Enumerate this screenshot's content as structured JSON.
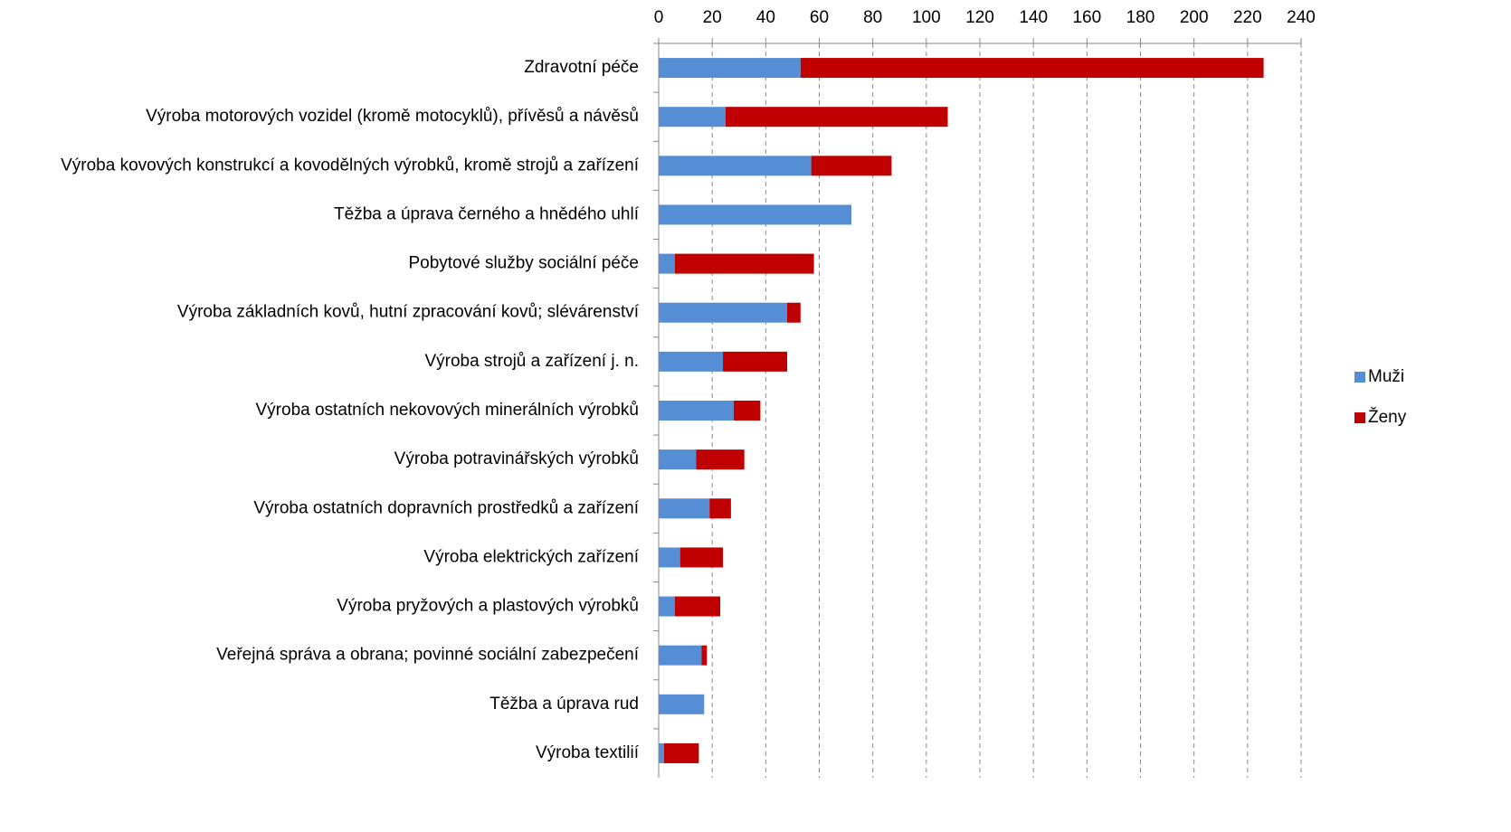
{
  "chart_data": {
    "type": "bar",
    "orientation": "horizontal",
    "stacked": true,
    "categories": [
      "Zdravotní péče",
      "Výroba motorových vozidel (kromě motocyklů), přívěsů a návěsů",
      "Výroba kovových konstrukcí a kovodělných výrobků, kromě strojů a zařízení",
      "Těžba a úprava černého a hnědého uhlí",
      "Pobytové služby sociální péče",
      "Výroba základních kovů, hutní zpracování kovů; slévárenství",
      "Výroba strojů a zařízení j. n.",
      "Výroba ostatních nekovových minerálních výrobků",
      "Výroba potravinářských výrobků",
      "Výroba ostatních dopravních prostředků a zařízení",
      "Výroba elektrických zařízení",
      "Výroba pryžových a plastových výrobků",
      "Veřejná správa a obrana; povinné sociální zabezpečení",
      "Těžba a úprava rud",
      "Výroba textilií"
    ],
    "series": [
      {
        "name": "Muži",
        "color": "#558ed5",
        "values": [
          53,
          25,
          57,
          72,
          6,
          48,
          24,
          28,
          14,
          19,
          8,
          6,
          16,
          17,
          2
        ]
      },
      {
        "name": "Ženy",
        "color": "#c00000",
        "values": [
          173,
          83,
          30,
          0,
          52,
          5,
          24,
          10,
          18,
          8,
          16,
          17,
          2,
          0,
          13
        ]
      }
    ],
    "xlim": [
      0,
      240
    ],
    "xticks": [
      0,
      20,
      40,
      60,
      80,
      100,
      120,
      140,
      160,
      180,
      200,
      220,
      240
    ],
    "grid": true,
    "legend": "right"
  }
}
